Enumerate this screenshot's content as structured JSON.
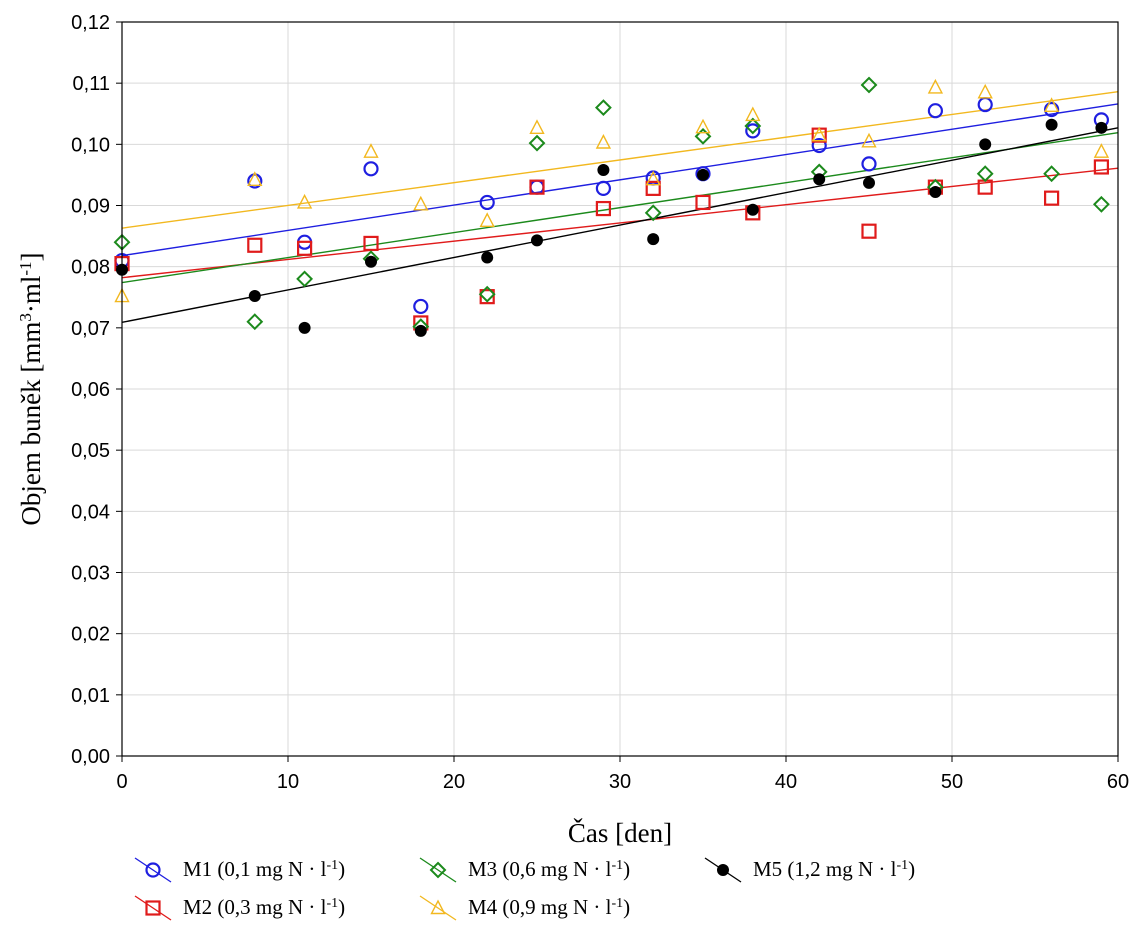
{
  "chart_data": {
    "type": "scatter",
    "xlabel": "Čas [den]",
    "ylabel_parts": [
      "Objem buněk [mm",
      "3",
      "·ml",
      "-1",
      "]"
    ],
    "xlim": [
      0,
      60
    ],
    "ylim": [
      0,
      0.12
    ],
    "xticks": [
      0,
      10,
      20,
      30,
      40,
      50,
      60
    ],
    "xtick_labels": [
      "0",
      "10",
      "20",
      "30",
      "40",
      "50",
      "60"
    ],
    "yticks": [
      0,
      0.01,
      0.02,
      0.03,
      0.04,
      0.05,
      0.06,
      0.07,
      0.08,
      0.09,
      0.1,
      0.11,
      0.12
    ],
    "ytick_labels": [
      "0,00",
      "0,01",
      "0,02",
      "0,03",
      "0,04",
      "0,05",
      "0,06",
      "0,07",
      "0,08",
      "0,09",
      "0,10",
      "0,11",
      "0,12"
    ],
    "grid": true,
    "legend_position": "bottom",
    "series": [
      {
        "name": "M1 (0,1 mg N · l-1)",
        "label_parts": [
          "M1 (0,1 mg N · l",
          "-1",
          ")"
        ],
        "marker": "circle",
        "color": "#1f1fe0",
        "x": [
          0,
          8,
          11,
          15,
          18,
          22,
          25,
          29,
          32,
          35,
          38,
          42,
          45,
          49,
          52,
          56,
          59
        ],
        "y": [
          0.081,
          0.094,
          0.084,
          0.096,
          0.0735,
          0.0905,
          0.093,
          0.0928,
          0.0945,
          0.0952,
          0.1022,
          0.0998,
          0.0968,
          0.1055,
          0.1065,
          0.1057,
          0.104
        ],
        "trend": [
          0.0818,
          0.1066
        ]
      },
      {
        "name": "M2 (0,3 mg N · l-1)",
        "label_parts": [
          "M2 (0,3 mg N · l",
          "-1",
          ")"
        ],
        "marker": "square",
        "color": "#e01b1b",
        "x": [
          0,
          8,
          11,
          15,
          18,
          22,
          25,
          29,
          32,
          35,
          38,
          42,
          45,
          49,
          52,
          56,
          59
        ],
        "y": [
          0.0805,
          0.0835,
          0.083,
          0.0838,
          0.0708,
          0.0751,
          0.093,
          0.0895,
          0.0928,
          0.0905,
          0.0888,
          0.1015,
          0.0858,
          0.093,
          0.093,
          0.0912,
          0.0963
        ],
        "trend": [
          0.0782,
          0.0961
        ]
      },
      {
        "name": "M3 (0,6 mg N · l-1)",
        "label_parts": [
          "M3 (0,6 mg N · l",
          "-1",
          ")"
        ],
        "marker": "diamond",
        "color": "#1c8a1c",
        "x": [
          0,
          8,
          11,
          15,
          18,
          22,
          25,
          29,
          32,
          35,
          38,
          42,
          45,
          49,
          52,
          56,
          59
        ],
        "y": [
          0.084,
          0.071,
          0.078,
          0.0813,
          0.0702,
          0.0755,
          0.1002,
          0.106,
          0.0888,
          0.1013,
          0.103,
          0.0955,
          0.1097,
          0.093,
          0.0952,
          0.0952,
          0.0902
        ],
        "trend": [
          0.0774,
          0.1019
        ]
      },
      {
        "name": "M4 (0,9 mg N · l-1)",
        "label_parts": [
          "M4 (0,9 mg N · l",
          "-1",
          ")"
        ],
        "marker": "triangle",
        "color": "#f2b81f",
        "x": [
          0,
          8,
          11,
          15,
          18,
          22,
          25,
          29,
          32,
          35,
          38,
          42,
          45,
          49,
          52,
          56,
          59
        ],
        "y": [
          0.0752,
          0.0942,
          0.0905,
          0.0988,
          0.0902,
          0.0875,
          0.1027,
          0.1003,
          0.0943,
          0.1028,
          0.1048,
          0.1015,
          0.1005,
          0.1093,
          0.1085,
          0.1063,
          0.0988
        ],
        "trend": [
          0.0863,
          0.1086
        ]
      },
      {
        "name": "M5 (1,2 mg N · l-1)",
        "label_parts": [
          "M5 (1,2 mg N · l",
          "-1",
          ")"
        ],
        "marker": "dot",
        "color": "#000000",
        "x": [
          0,
          8,
          11,
          15,
          18,
          22,
          25,
          29,
          32,
          35,
          38,
          42,
          45,
          49,
          52,
          56,
          59
        ],
        "y": [
          0.0795,
          0.0752,
          0.07,
          0.0808,
          0.0695,
          0.0815,
          0.0843,
          0.0958,
          0.0845,
          0.095,
          0.0893,
          0.0943,
          0.0937,
          0.0922,
          0.1,
          0.1032,
          0.1027
        ],
        "trend": [
          0.0709,
          0.1027
        ]
      }
    ]
  }
}
